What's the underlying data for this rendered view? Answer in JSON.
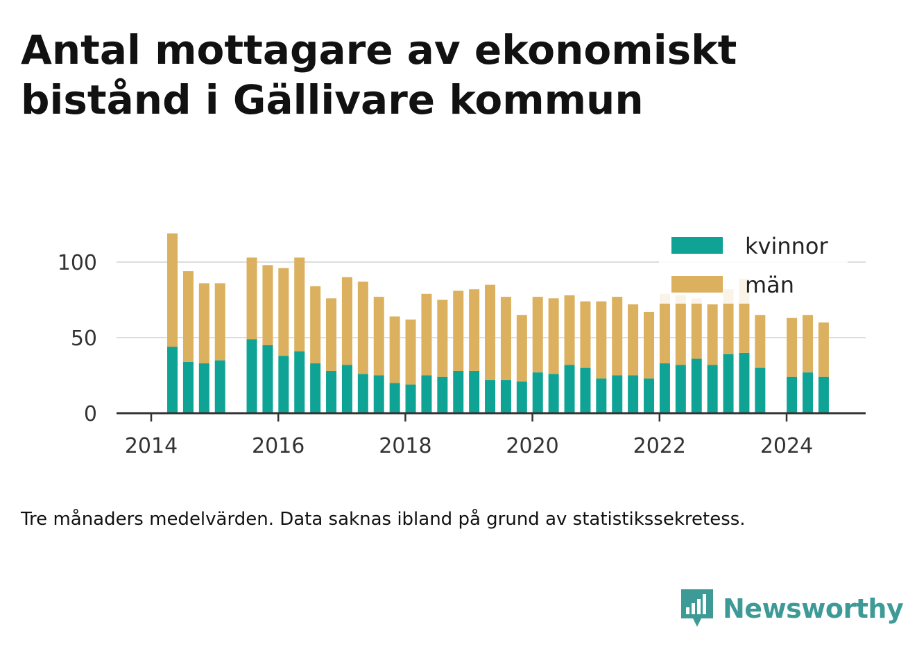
{
  "title": "Antal mottagare av ekonomiskt bistånd i Gällivare kommun",
  "caption": "Tre månaders medelvärden. Data saknas ibland på grund av statistikssekretess.",
  "brand": {
    "name": "Newsworthy",
    "icon": "newsworthy-logo-icon",
    "color": "#3e9a96"
  },
  "colors": {
    "kvinnor": "#0fa396",
    "man": "#dbb05e",
    "grid": "#dddddd",
    "axis": "#333333"
  },
  "chart_data": {
    "type": "bar",
    "stacked": true,
    "title": "Antal mottagare av ekonomiskt bistånd i Gällivare kommun",
    "xlabel": "",
    "ylabel": "",
    "ylim": [
      0,
      120
    ],
    "y_ticks": [
      0,
      50,
      100
    ],
    "x_ticks": [
      "2014",
      "2016",
      "2018",
      "2020",
      "2022",
      "2024"
    ],
    "grid": true,
    "legend_position": "top-right",
    "series": [
      {
        "name": "kvinnor",
        "color": "#0fa396",
        "values": [
          {
            "x": "2014-05",
            "y": 44
          },
          {
            "x": "2014-08",
            "y": 34
          },
          {
            "x": "2014-11",
            "y": 33
          },
          {
            "x": "2015-02",
            "y": 35
          },
          {
            "x": "2015-08",
            "y": 49
          },
          {
            "x": "2015-11",
            "y": 45
          },
          {
            "x": "2016-02",
            "y": 38
          },
          {
            "x": "2016-05",
            "y": 41
          },
          {
            "x": "2016-08",
            "y": 33
          },
          {
            "x": "2016-11",
            "y": 28
          },
          {
            "x": "2017-02",
            "y": 32
          },
          {
            "x": "2017-05",
            "y": 26
          },
          {
            "x": "2017-08",
            "y": 25
          },
          {
            "x": "2017-11",
            "y": 20
          },
          {
            "x": "2018-02",
            "y": 19
          },
          {
            "x": "2018-05",
            "y": 25
          },
          {
            "x": "2018-08",
            "y": 24
          },
          {
            "x": "2018-11",
            "y": 28
          },
          {
            "x": "2019-02",
            "y": 28
          },
          {
            "x": "2019-05",
            "y": 22
          },
          {
            "x": "2019-08",
            "y": 22
          },
          {
            "x": "2019-11",
            "y": 21
          },
          {
            "x": "2020-02",
            "y": 27
          },
          {
            "x": "2020-05",
            "y": 26
          },
          {
            "x": "2020-08",
            "y": 32
          },
          {
            "x": "2020-11",
            "y": 30
          },
          {
            "x": "2021-02",
            "y": 23
          },
          {
            "x": "2021-05",
            "y": 25
          },
          {
            "x": "2021-08",
            "y": 25
          },
          {
            "x": "2021-11",
            "y": 23
          },
          {
            "x": "2022-02",
            "y": 33
          },
          {
            "x": "2022-05",
            "y": 32
          },
          {
            "x": "2022-08",
            "y": 36
          },
          {
            "x": "2022-11",
            "y": 32
          },
          {
            "x": "2023-02",
            "y": 39
          },
          {
            "x": "2023-05",
            "y": 40
          },
          {
            "x": "2023-08",
            "y": 30
          },
          {
            "x": "2024-02",
            "y": 24
          },
          {
            "x": "2024-05",
            "y": 27
          },
          {
            "x": "2024-08",
            "y": 24
          }
        ]
      },
      {
        "name": "män",
        "color": "#dbb05e",
        "values": [
          {
            "x": "2014-05",
            "y": 75
          },
          {
            "x": "2014-08",
            "y": 60
          },
          {
            "x": "2014-11",
            "y": 53
          },
          {
            "x": "2015-02",
            "y": 51
          },
          {
            "x": "2015-08",
            "y": 54
          },
          {
            "x": "2015-11",
            "y": 53
          },
          {
            "x": "2016-02",
            "y": 58
          },
          {
            "x": "2016-05",
            "y": 62
          },
          {
            "x": "2016-08",
            "y": 51
          },
          {
            "x": "2016-11",
            "y": 48
          },
          {
            "x": "2017-02",
            "y": 58
          },
          {
            "x": "2017-05",
            "y": 61
          },
          {
            "x": "2017-08",
            "y": 52
          },
          {
            "x": "2017-11",
            "y": 44
          },
          {
            "x": "2018-02",
            "y": 43
          },
          {
            "x": "2018-05",
            "y": 54
          },
          {
            "x": "2018-08",
            "y": 51
          },
          {
            "x": "2018-11",
            "y": 53
          },
          {
            "x": "2019-02",
            "y": 54
          },
          {
            "x": "2019-05",
            "y": 63
          },
          {
            "x": "2019-08",
            "y": 55
          },
          {
            "x": "2019-11",
            "y": 44
          },
          {
            "x": "2020-02",
            "y": 50
          },
          {
            "x": "2020-05",
            "y": 50
          },
          {
            "x": "2020-08",
            "y": 46
          },
          {
            "x": "2020-11",
            "y": 44
          },
          {
            "x": "2021-02",
            "y": 51
          },
          {
            "x": "2021-05",
            "y": 52
          },
          {
            "x": "2021-08",
            "y": 47
          },
          {
            "x": "2021-11",
            "y": 44
          },
          {
            "x": "2022-02",
            "y": 46
          },
          {
            "x": "2022-05",
            "y": 46
          },
          {
            "x": "2022-08",
            "y": 40
          },
          {
            "x": "2022-11",
            "y": 40
          },
          {
            "x": "2023-02",
            "y": 43
          },
          {
            "x": "2023-05",
            "y": 49
          },
          {
            "x": "2023-08",
            "y": 35
          },
          {
            "x": "2024-02",
            "y": 39
          },
          {
            "x": "2024-05",
            "y": 38
          },
          {
            "x": "2024-08",
            "y": 36
          }
        ]
      }
    ]
  }
}
